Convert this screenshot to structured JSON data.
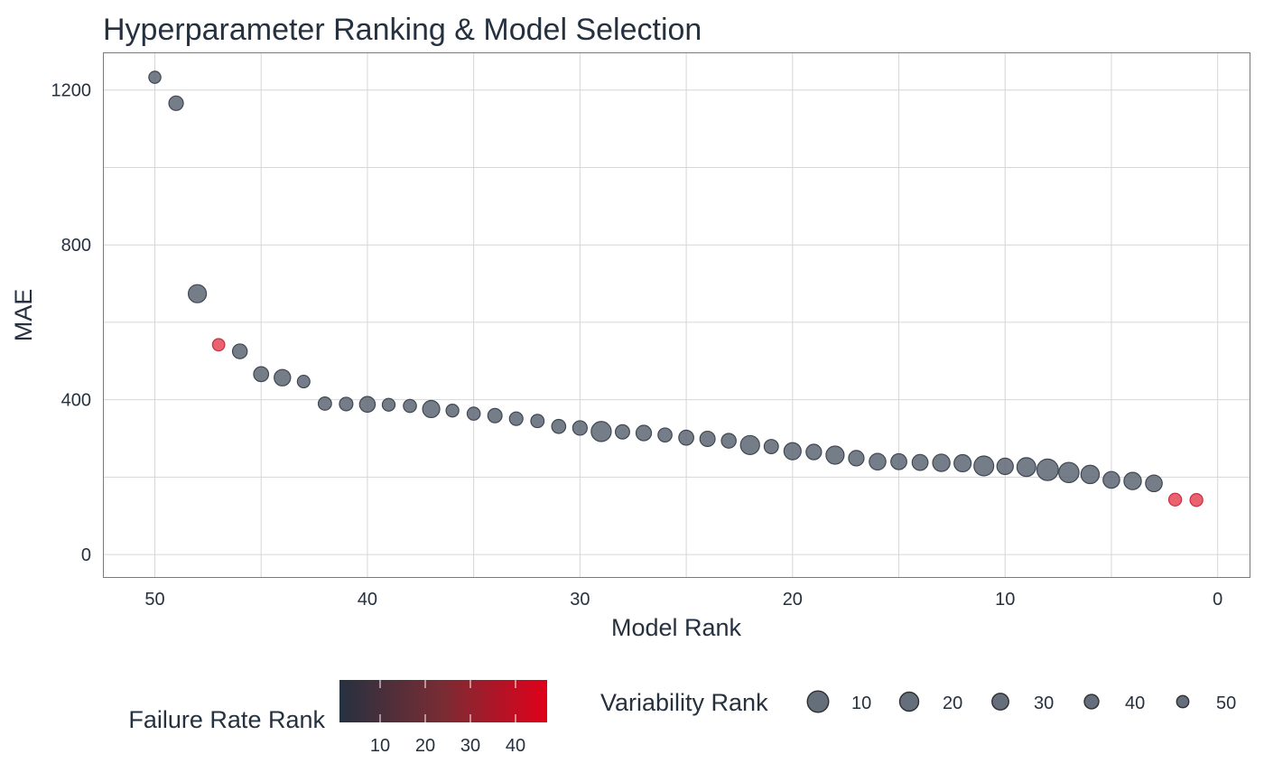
{
  "chart_data": {
    "type": "scatter",
    "title": "Hyperparameter Ranking & Model Selection",
    "xlabel": "Model Rank",
    "ylabel": "MAE",
    "xlim": [
      52.4,
      -1.5
    ],
    "x_reversed": true,
    "ylim": [
      -58,
      1295
    ],
    "x_ticks": [
      50,
      40,
      30,
      20,
      10,
      0
    ],
    "x_tick_labels": [
      "50",
      "40",
      "30",
      "20",
      "10",
      "0"
    ],
    "y_ticks": [
      0,
      400,
      800,
      1200
    ],
    "y_tick_labels": [
      "0",
      "400",
      "800",
      "1200"
    ],
    "grid": true,
    "legend_placement": "bottom",
    "colors": {
      "low": "#263140",
      "high": "#e0001a",
      "point_default": "#5d6674",
      "point_failure": "#e8505f"
    },
    "series": [
      {
        "x": [
          50,
          49,
          48,
          47,
          46,
          45,
          44,
          43,
          42,
          41,
          40,
          39,
          38,
          37,
          36,
          35,
          34,
          33,
          32,
          31,
          30,
          29,
          28,
          27,
          26,
          25,
          24,
          23,
          22,
          21,
          20,
          19,
          18,
          17,
          16,
          15,
          14,
          13,
          12,
          11,
          10,
          9,
          8,
          7,
          6,
          5,
          4,
          3,
          2,
          1
        ],
        "y": [
          1233,
          1166,
          674,
          542,
          525,
          466,
          457,
          447,
          390,
          389,
          388,
          387,
          384,
          376,
          372,
          364,
          359,
          351,
          345,
          331,
          327,
          318,
          317,
          314,
          309,
          302,
          299,
          294,
          283,
          279,
          267,
          265,
          257,
          249,
          240,
          240,
          238,
          237,
          236,
          229,
          228,
          226,
          219,
          212,
          207,
          193,
          190,
          184,
          142,
          141
        ],
        "variability_rank": [
          45,
          35,
          20,
          44,
          34,
          33,
          27,
          43,
          40,
          39,
          30,
          42,
          41,
          24,
          42,
          41,
          36,
          39,
          40,
          37,
          35,
          12,
          36,
          31,
          37,
          33,
          32,
          34,
          16,
          36,
          24,
          31,
          20,
          31,
          26,
          29,
          29,
          23,
          24,
          13,
          27,
          17,
          6,
          11,
          19,
          26,
          23,
          26,
          42,
          42
        ],
        "failure_flag": [
          0,
          0,
          0,
          1,
          0,
          0,
          0,
          0,
          0,
          0,
          0,
          0,
          0,
          0,
          0,
          0,
          0,
          0,
          0,
          0,
          0,
          0,
          0,
          0,
          0,
          0,
          0,
          0,
          0,
          0,
          0,
          0,
          0,
          0,
          0,
          0,
          0,
          0,
          0,
          0,
          0,
          0,
          0,
          0,
          0,
          0,
          0,
          0,
          1,
          1
        ]
      }
    ],
    "legends": {
      "color": {
        "title": "Failure Rate Rank",
        "ticks": [
          10,
          20,
          30,
          40
        ],
        "tick_labels": [
          "10",
          "20",
          "30",
          "40"
        ],
        "range": [
          1,
          47
        ]
      },
      "size": {
        "title": "Variability Rank",
        "values": [
          10,
          20,
          30,
          40,
          50
        ],
        "labels": [
          "10",
          "20",
          "30",
          "40",
          "50"
        ]
      }
    }
  }
}
